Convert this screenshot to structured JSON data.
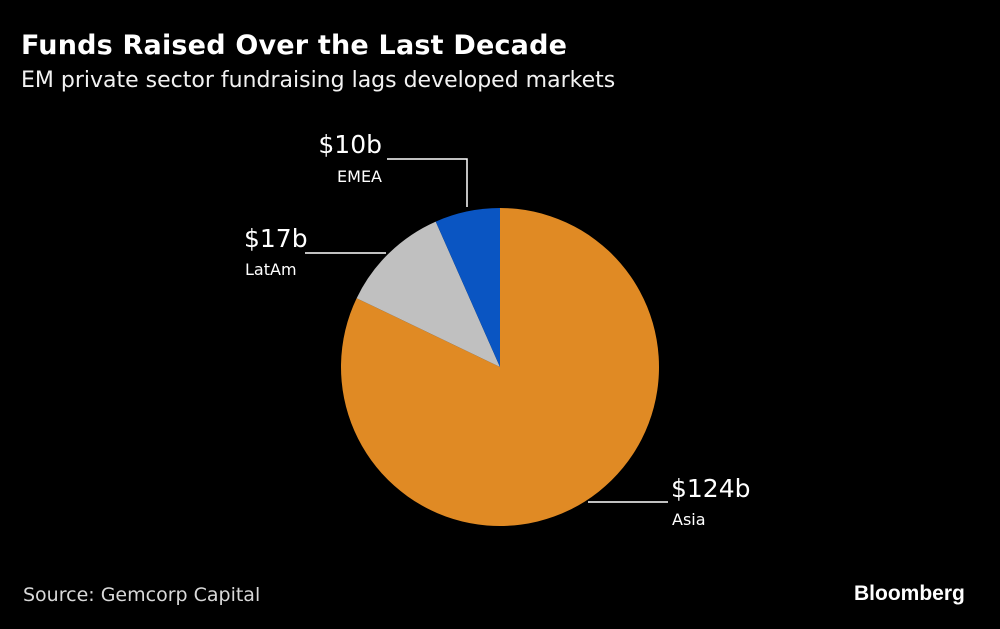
{
  "chart_data": {
    "type": "pie",
    "title": "Funds Raised Over the Last Decade",
    "subtitle": "EM private sector fundraising lags developed markets",
    "unit": "USD billions",
    "slices": [
      {
        "name": "Asia",
        "value": 124,
        "label": "$124b",
        "color": "#E08A24"
      },
      {
        "name": "LatAm",
        "value": 17,
        "label": "$17b",
        "color": "#C0C0C0"
      },
      {
        "name": "EMEA",
        "value": 10,
        "label": "$10b",
        "color": "#0A55C2"
      }
    ],
    "start": "12 o'clock, clockwise",
    "legend": "none (direct labels)"
  },
  "footer": {
    "source": "Source: Gemcorp Capital",
    "brand": "Bloomberg"
  }
}
